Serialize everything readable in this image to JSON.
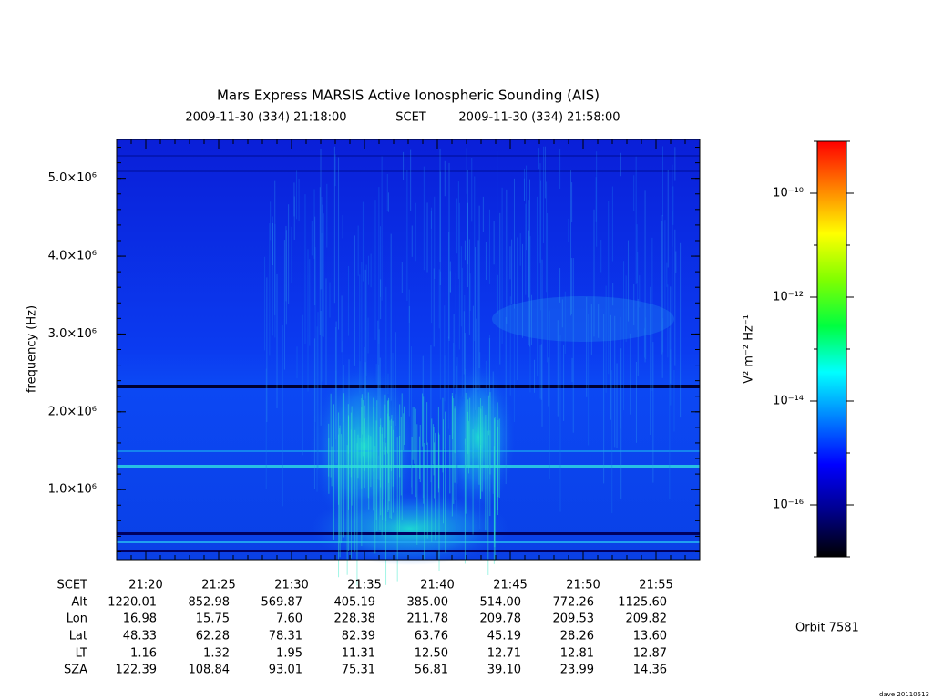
{
  "chart_data": {
    "type": "spectrogram",
    "title": "Mars Express MARSIS Active Ionospheric Sounding (AIS)",
    "subtitle_start": "2009-11-30 (334) 21:18:00",
    "subtitle_frame": "SCET",
    "subtitle_end": "2009-11-30 (334) 21:58:00",
    "y_label": "frequency (Hz)",
    "ylim": [
      100000,
      5500000
    ],
    "yticks": [
      {
        "value": 1000000,
        "label": "1.0×10⁶"
      },
      {
        "value": 2000000,
        "label": "2.0×10⁶"
      },
      {
        "value": 3000000,
        "label": "3.0×10⁶"
      },
      {
        "value": 4000000,
        "label": "4.0×10⁶"
      },
      {
        "value": 5000000,
        "label": "5.0×10⁶"
      }
    ],
    "colorbar": {
      "label": "V² m⁻² Hz⁻¹",
      "log": true,
      "zlim": [
        1e-17,
        1e-09
      ],
      "ticks": [
        {
          "value": 1e-16,
          "label": "10⁻¹⁶"
        },
        {
          "value": 1e-14,
          "label": "10⁻¹⁴"
        },
        {
          "value": 1e-12,
          "label": "10⁻¹²"
        },
        {
          "value": 1e-10,
          "label": "10⁻¹⁰"
        }
      ],
      "colors": [
        "#000000",
        "#00008c",
        "#0000ff",
        "#0080ff",
        "#00ffff",
        "#00ff40",
        "#80ff00",
        "#ffff00",
        "#ff8000",
        "#ff0000"
      ]
    }
  },
  "ephemeris": {
    "row_labels": [
      "SCET",
      "Alt",
      "Lon",
      "Lat",
      "LT",
      "SZA"
    ],
    "times": [
      "21:20",
      "21:25",
      "21:30",
      "21:35",
      "21:40",
      "21:45",
      "21:50",
      "21:55"
    ],
    "rows": [
      [
        "1220.01",
        "852.98",
        "569.87",
        "405.19",
        "385.00",
        "514.00",
        "772.26",
        "1125.60"
      ],
      [
        "16.98",
        "15.75",
        "7.60",
        "228.38",
        "211.78",
        "209.78",
        "209.53",
        "209.82"
      ],
      [
        "48.33",
        "62.28",
        "78.31",
        "82.39",
        "63.76",
        "45.19",
        "28.26",
        "13.60"
      ],
      [
        "1.16",
        "1.32",
        "1.95",
        "11.31",
        "12.50",
        "12.71",
        "12.81",
        "12.87"
      ],
      [
        "122.39",
        "108.84",
        "93.01",
        "75.31",
        "56.81",
        "39.10",
        "23.99",
        "14.36"
      ]
    ]
  },
  "orbit": "Orbit 7581",
  "credit": "dave 20110513"
}
